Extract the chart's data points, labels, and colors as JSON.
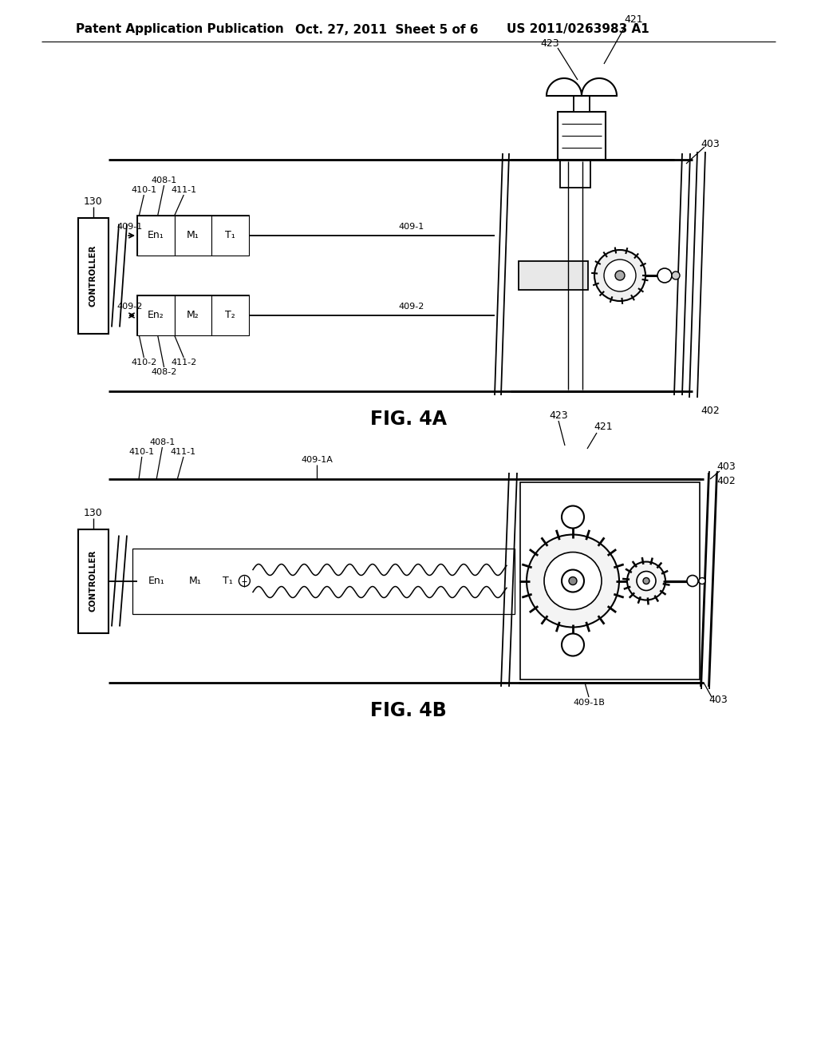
{
  "bg_color": "#ffffff",
  "header_left": "Patent Application Publication",
  "header_mid": "Oct. 27, 2011  Sheet 5 of 6",
  "header_right": "US 2011/0263983 A1",
  "fig4a_title": "FIG. 4A",
  "fig4b_title": "FIG. 4B",
  "lc": "#000000",
  "tc": "#000000"
}
